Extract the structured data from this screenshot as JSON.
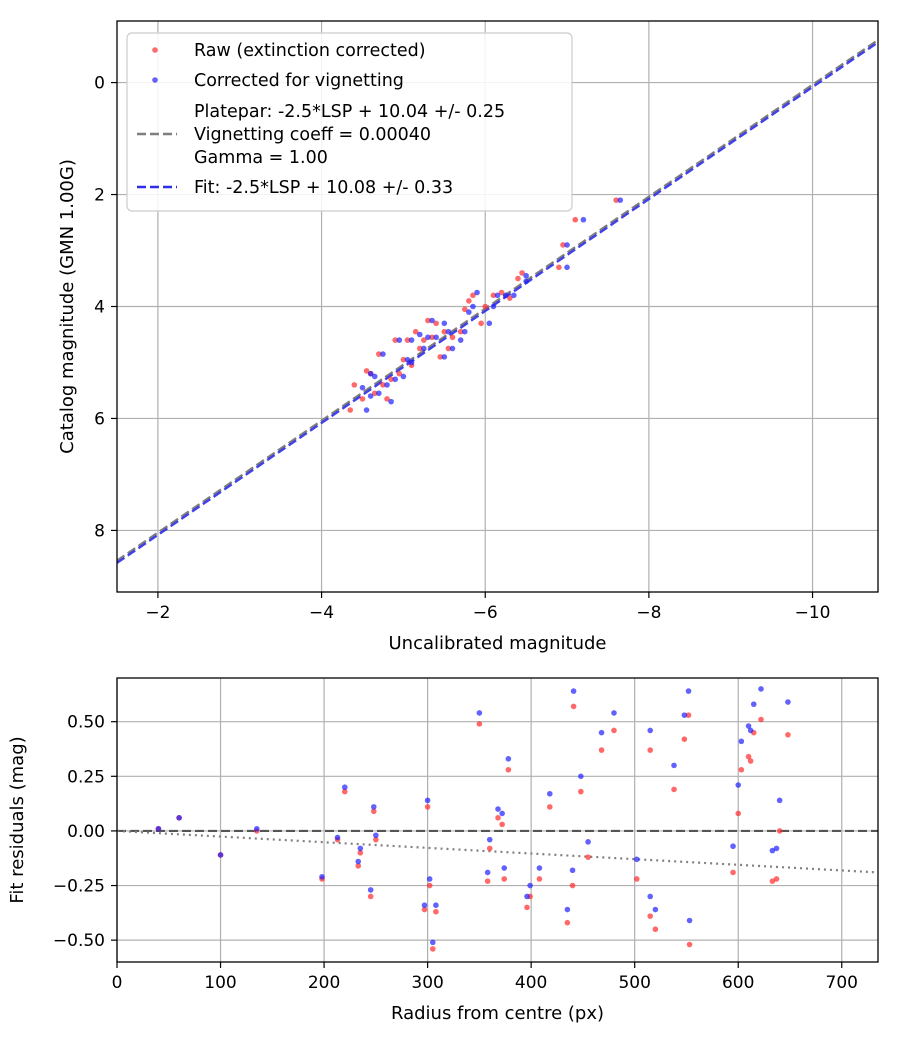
{
  "colors": {
    "raw": "#ff2a2a",
    "corrected": "#2020ff",
    "platepar_line": "#7f7f7f",
    "fit_line": "#2f2fe8",
    "zero_line": "#555555",
    "grid": "#b0b0b0"
  },
  "chart_data": [
    {
      "type": "scatter",
      "title": "",
      "xlabel": "Uncalibrated magnitude",
      "ylabel": "Catalog magnitude (GMN 1.00G)",
      "xlim": [
        -1.5,
        -10.8
      ],
      "ylim": [
        9.1,
        -1.1
      ],
      "xticks": [
        -2,
        -4,
        -6,
        -8,
        -10
      ],
      "xtick_labels": [
        "−2",
        "−4",
        "−6",
        "−8",
        "−10"
      ],
      "yticks": [
        0,
        2,
        4,
        6,
        8
      ],
      "ytick_labels": [
        "0",
        "2",
        "4",
        "6",
        "8"
      ],
      "grid": true,
      "legend_position": "top-left",
      "legend": [
        {
          "key": "raw",
          "kind": "marker",
          "lines": [
            "Raw (extinction corrected)"
          ]
        },
        {
          "key": "corrected",
          "kind": "marker",
          "lines": [
            "Corrected for vignetting"
          ]
        },
        {
          "key": "platepar",
          "kind": "dashed",
          "lines": [
            "Platepar: -2.5*LSP + 10.04 +/- 0.25",
            "Vignetting coeff = 0.00040",
            "Gamma = 1.00"
          ]
        },
        {
          "key": "fit",
          "kind": "dashed",
          "lines": [
            "Fit: -2.5*LSP + 10.08 +/- 0.33"
          ]
        }
      ],
      "lines": [
        {
          "name": "Platepar",
          "slope": 1.0,
          "intercept": 10.04
        },
        {
          "name": "Fit",
          "slope": 1.0,
          "intercept": 10.08
        }
      ],
      "series": [
        {
          "name": "Raw (extinction corrected)",
          "points": [
            [
              -7.6,
              2.1
            ],
            [
              -7.1,
              2.45
            ],
            [
              -6.95,
              2.9
            ],
            [
              -6.9,
              3.3
            ],
            [
              -6.45,
              3.4
            ],
            [
              -6.4,
              3.5
            ],
            [
              -6.2,
              3.75
            ],
            [
              -6.1,
              3.8
            ],
            [
              -6.0,
              4.0
            ],
            [
              -5.95,
              4.3
            ],
            [
              -5.85,
              3.8
            ],
            [
              -5.8,
              3.9
            ],
            [
              -5.75,
              4.05
            ],
            [
              -5.7,
              4.45
            ],
            [
              -5.6,
              4.55
            ],
            [
              -5.55,
              4.75
            ],
            [
              -5.5,
              4.45
            ],
            [
              -5.45,
              4.9
            ],
            [
              -5.4,
              4.3
            ],
            [
              -5.3,
              4.25
            ],
            [
              -5.25,
              4.6
            ],
            [
              -5.2,
              4.75
            ],
            [
              -5.15,
              4.45
            ],
            [
              -5.1,
              5.05
            ],
            [
              -5.05,
              4.6
            ],
            [
              -5.0,
              4.95
            ],
            [
              -4.95,
              5.2
            ],
            [
              -4.9,
              4.6
            ],
            [
              -4.85,
              5.3
            ],
            [
              -4.75,
              5.4
            ],
            [
              -4.7,
              4.85
            ],
            [
              -4.65,
              5.55
            ],
            [
              -4.6,
              5.2
            ],
            [
              -4.55,
              5.15
            ],
            [
              -4.5,
              5.65
            ],
            [
              -4.4,
              5.4
            ],
            [
              -4.35,
              5.85
            ],
            [
              -4.8,
              5.65
            ],
            [
              -5.35,
              4.55
            ],
            [
              -6.3,
              3.85
            ]
          ]
        },
        {
          "name": "Corrected for vignetting",
          "points": [
            [
              -7.65,
              2.1
            ],
            [
              -7.2,
              2.45
            ],
            [
              -7.0,
              2.9
            ],
            [
              -7.0,
              3.3
            ],
            [
              -6.5,
              3.45
            ],
            [
              -6.5,
              3.55
            ],
            [
              -6.25,
              3.8
            ],
            [
              -6.15,
              3.8
            ],
            [
              -6.1,
              4.0
            ],
            [
              -6.05,
              4.3
            ],
            [
              -5.9,
              3.75
            ],
            [
              -5.85,
              4.0
            ],
            [
              -5.8,
              4.1
            ],
            [
              -5.75,
              4.45
            ],
            [
              -5.7,
              4.6
            ],
            [
              -5.6,
              4.75
            ],
            [
              -5.55,
              4.45
            ],
            [
              -5.5,
              4.9
            ],
            [
              -5.5,
              4.3
            ],
            [
              -5.35,
              4.25
            ],
            [
              -5.3,
              4.55
            ],
            [
              -5.25,
              4.75
            ],
            [
              -5.2,
              4.5
            ],
            [
              -5.1,
              5.0
            ],
            [
              -5.1,
              4.6
            ],
            [
              -5.05,
              4.95
            ],
            [
              -5.0,
              5.25
            ],
            [
              -4.95,
              4.6
            ],
            [
              -4.9,
              5.3
            ],
            [
              -4.8,
              5.4
            ],
            [
              -4.75,
              4.85
            ],
            [
              -4.7,
              5.55
            ],
            [
              -4.65,
              5.25
            ],
            [
              -4.6,
              5.2
            ],
            [
              -4.6,
              5.6
            ],
            [
              -4.5,
              5.45
            ],
            [
              -4.55,
              5.85
            ],
            [
              -4.85,
              5.7
            ],
            [
              -5.4,
              4.55
            ],
            [
              -6.35,
              3.8
            ]
          ]
        }
      ]
    },
    {
      "type": "scatter",
      "title": "",
      "xlabel": "Radius from centre (px)",
      "ylabel": "Fit residuals (mag)",
      "xlim": [
        0,
        735
      ],
      "ylim": [
        -0.6,
        0.7
      ],
      "xticks": [
        0,
        100,
        200,
        300,
        400,
        500,
        600,
        700
      ],
      "xtick_labels": [
        "0",
        "100",
        "200",
        "300",
        "400",
        "500",
        "600",
        "700"
      ],
      "yticks": [
        0.5,
        0.25,
        0.0,
        -0.25,
        -0.5
      ],
      "ytick_labels": [
        "0.50",
        "0.25",
        "0.00",
        "−0.25",
        "−0.50"
      ],
      "grid": true,
      "lines": [
        {
          "name": "Zero",
          "style": "dashed",
          "from": [
            0,
            0
          ],
          "to": [
            735,
            0
          ]
        },
        {
          "name": "Vignetting trend",
          "style": "dotted",
          "from": [
            0,
            0.0
          ],
          "to": [
            735,
            -0.19
          ]
        }
      ],
      "series": [
        {
          "name": "Raw",
          "points": [
            [
              40,
              0.01
            ],
            [
              60,
              0.06
            ],
            [
              100,
              -0.11
            ],
            [
              135,
              0.0
            ],
            [
              198,
              -0.22
            ],
            [
              213,
              -0.04
            ],
            [
              220,
              0.18
            ],
            [
              233,
              -0.16
            ],
            [
              235,
              -0.1
            ],
            [
              245,
              -0.3
            ],
            [
              248,
              0.09
            ],
            [
              250,
              -0.04
            ],
            [
              297,
              -0.36
            ],
            [
              300,
              0.11
            ],
            [
              302,
              -0.25
            ],
            [
              305,
              -0.54
            ],
            [
              308,
              -0.37
            ],
            [
              350,
              0.49
            ],
            [
              358,
              -0.23
            ],
            [
              360,
              -0.08
            ],
            [
              368,
              0.06
            ],
            [
              372,
              0.03
            ],
            [
              374,
              -0.22
            ],
            [
              378,
              0.28
            ],
            [
              396,
              -0.35
            ],
            [
              399,
              -0.3
            ],
            [
              408,
              -0.22
            ],
            [
              418,
              0.11
            ],
            [
              435,
              -0.42
            ],
            [
              440,
              -0.25
            ],
            [
              441,
              0.57
            ],
            [
              448,
              0.18
            ],
            [
              455,
              -0.12
            ],
            [
              468,
              0.37
            ],
            [
              480,
              0.46
            ],
            [
              502,
              -0.22
            ],
            [
              515,
              -0.39
            ],
            [
              515,
              0.37
            ],
            [
              520,
              -0.45
            ],
            [
              538,
              0.19
            ],
            [
              548,
              0.42
            ],
            [
              552,
              0.53
            ],
            [
              553,
              -0.52
            ],
            [
              595,
              -0.19
            ],
            [
              600,
              0.08
            ],
            [
              603,
              0.28
            ],
            [
              610,
              0.34
            ],
            [
              612,
              0.32
            ],
            [
              615,
              0.45
            ],
            [
              622,
              0.51
            ],
            [
              633,
              -0.23
            ],
            [
              637,
              -0.22
            ],
            [
              640,
              0.0
            ],
            [
              648,
              0.44
            ]
          ]
        },
        {
          "name": "Corrected",
          "points": [
            [
              40,
              0.01
            ],
            [
              60,
              0.06
            ],
            [
              100,
              -0.11
            ],
            [
              135,
              0.01
            ],
            [
              198,
              -0.21
            ],
            [
              213,
              -0.03
            ],
            [
              220,
              0.2
            ],
            [
              233,
              -0.14
            ],
            [
              235,
              -0.08
            ],
            [
              245,
              -0.27
            ],
            [
              248,
              0.11
            ],
            [
              250,
              -0.02
            ],
            [
              297,
              -0.34
            ],
            [
              300,
              0.14
            ],
            [
              302,
              -0.22
            ],
            [
              305,
              -0.51
            ],
            [
              308,
              -0.34
            ],
            [
              350,
              0.54
            ],
            [
              358,
              -0.19
            ],
            [
              360,
              -0.04
            ],
            [
              368,
              0.1
            ],
            [
              372,
              0.08
            ],
            [
              374,
              -0.17
            ],
            [
              378,
              0.33
            ],
            [
              396,
              -0.3
            ],
            [
              399,
              -0.25
            ],
            [
              408,
              -0.17
            ],
            [
              418,
              0.17
            ],
            [
              435,
              -0.36
            ],
            [
              440,
              -0.18
            ],
            [
              441,
              0.64
            ],
            [
              448,
              0.25
            ],
            [
              455,
              -0.05
            ],
            [
              468,
              0.45
            ],
            [
              480,
              0.54
            ],
            [
              502,
              -0.13
            ],
            [
              515,
              -0.3
            ],
            [
              515,
              0.46
            ],
            [
              520,
              -0.36
            ],
            [
              538,
              0.3
            ],
            [
              548,
              0.53
            ],
            [
              552,
              0.64
            ],
            [
              553,
              -0.41
            ],
            [
              595,
              -0.07
            ],
            [
              600,
              0.21
            ],
            [
              603,
              0.41
            ],
            [
              610,
              0.48
            ],
            [
              612,
              0.46
            ],
            [
              615,
              0.58
            ],
            [
              622,
              0.65
            ],
            [
              633,
              -0.09
            ],
            [
              637,
              -0.08
            ],
            [
              640,
              0.14
            ],
            [
              648,
              0.59
            ]
          ]
        }
      ]
    }
  ]
}
